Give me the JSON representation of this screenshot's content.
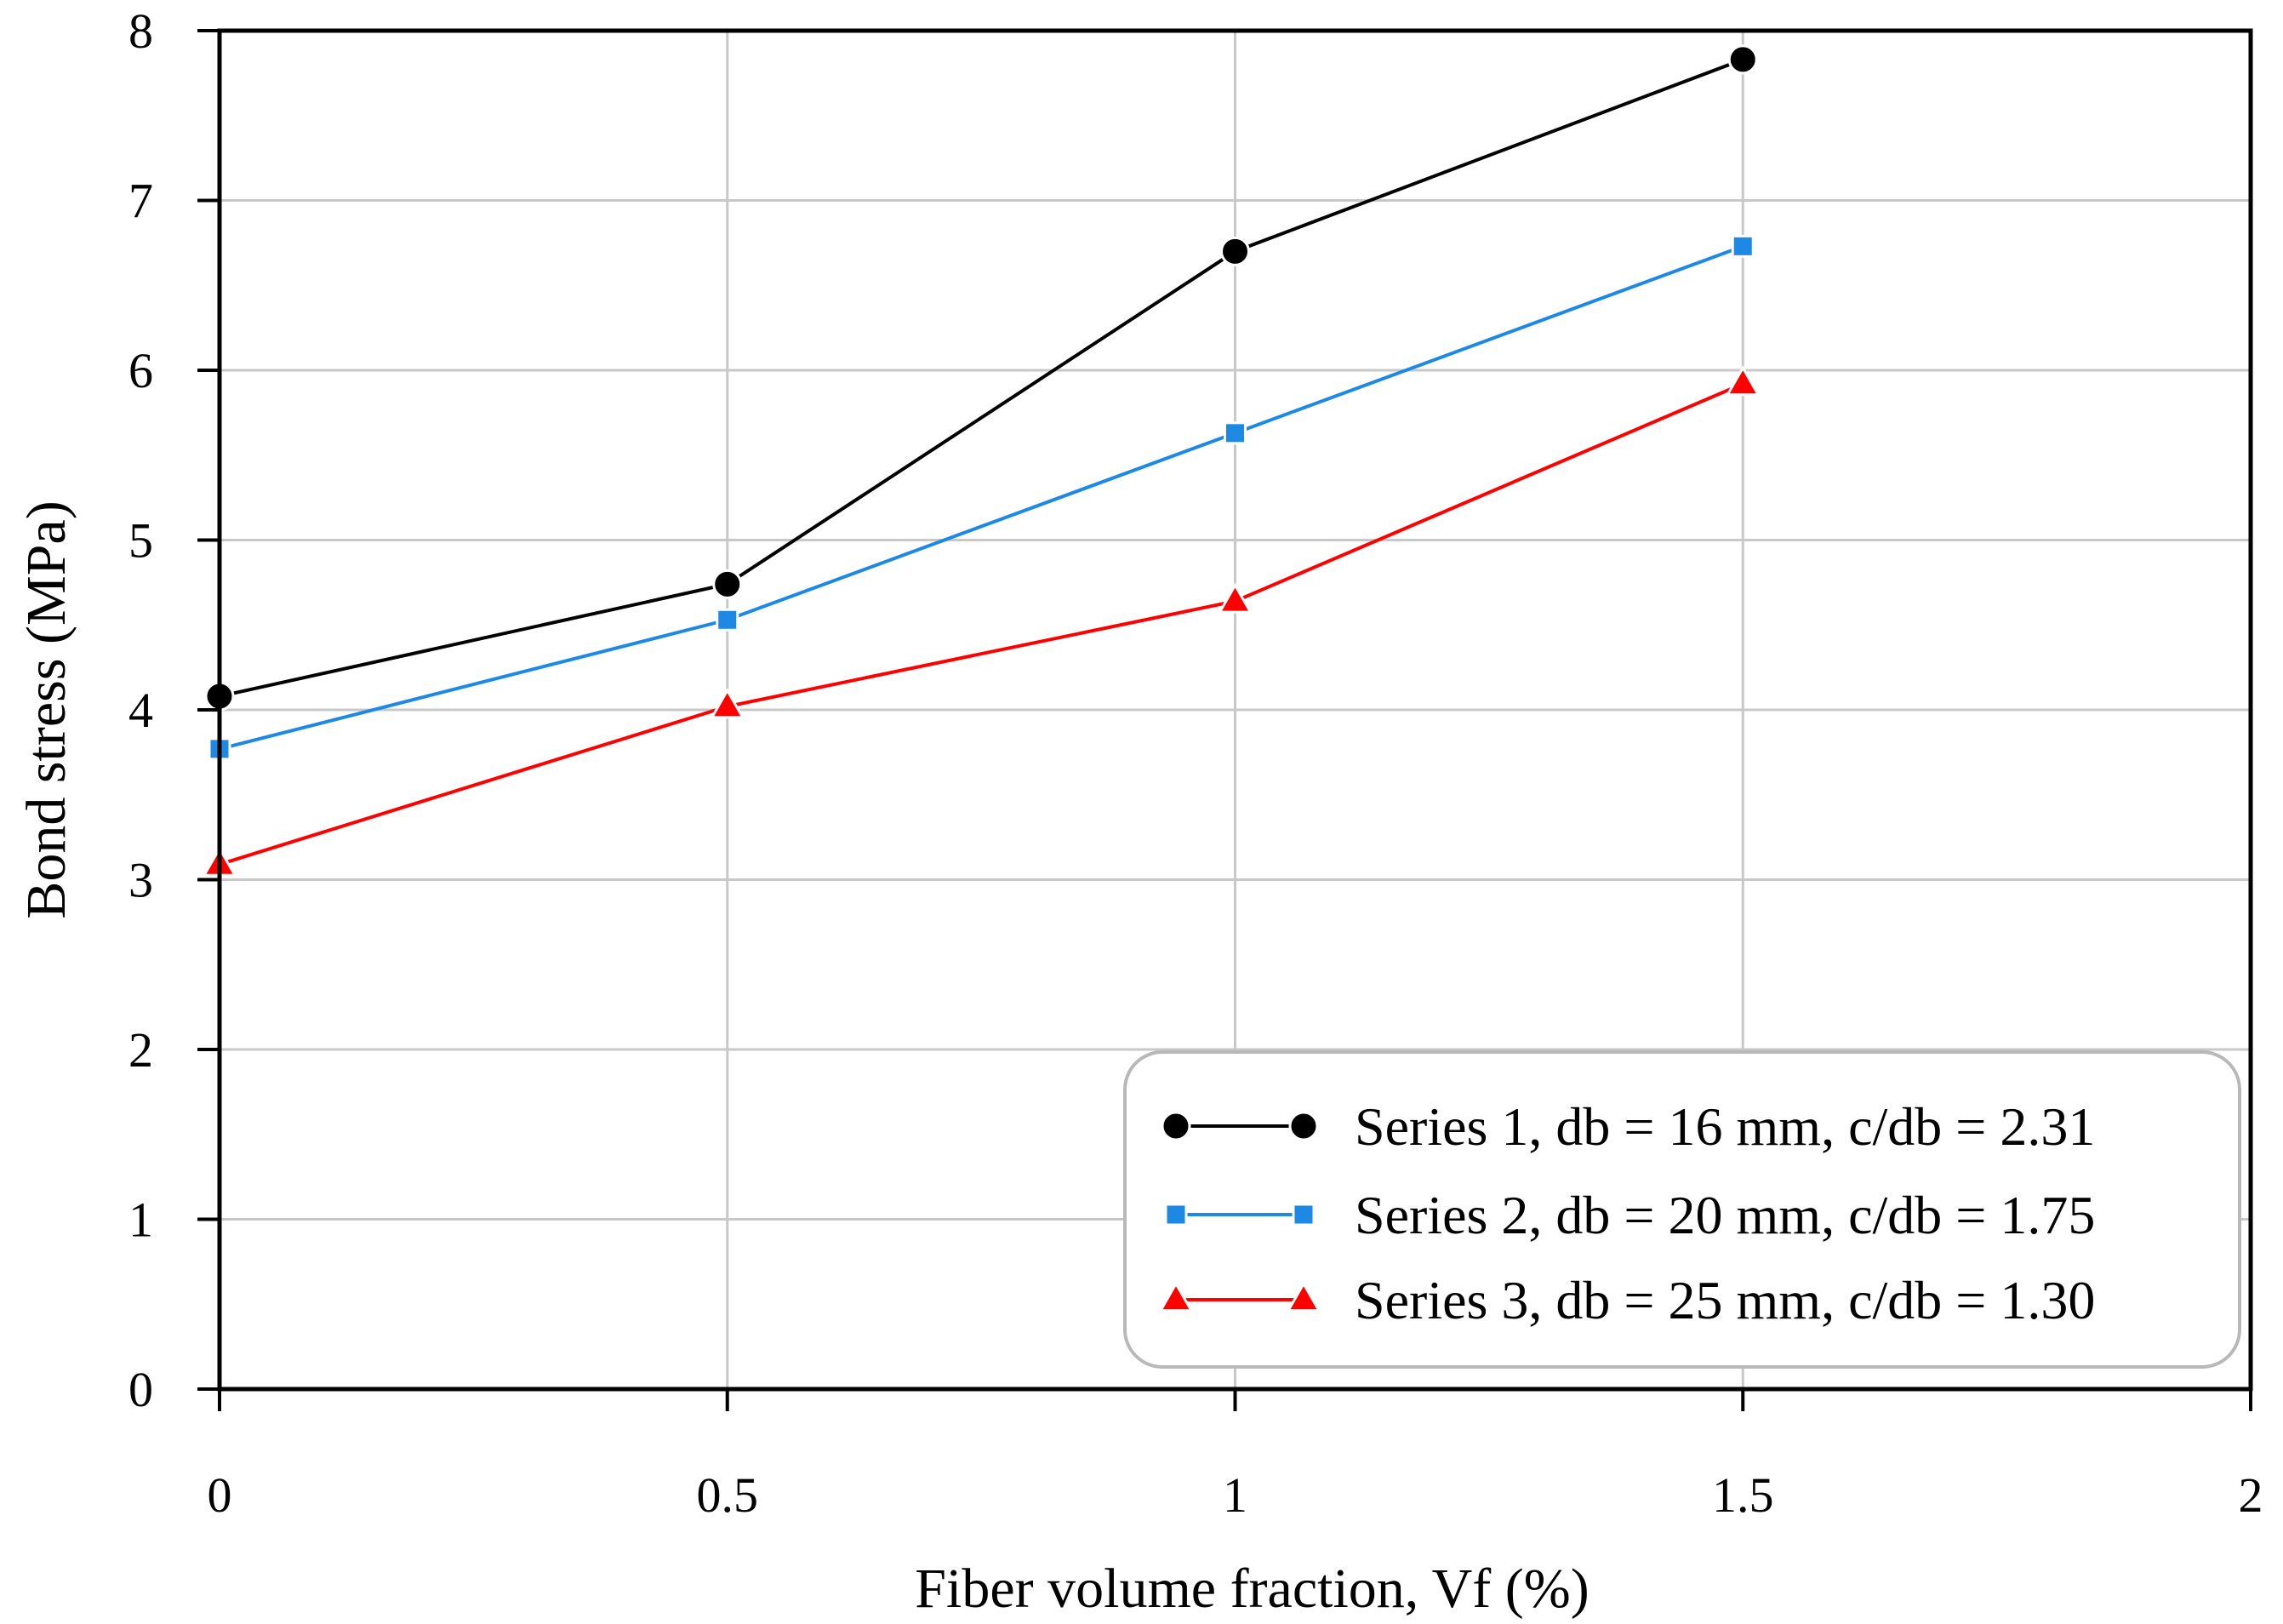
{
  "chart_data": {
    "type": "line",
    "title": "",
    "xlabel": "Fiber volume fraction, Vf (%)",
    "ylabel": "Bond stress (MPa)",
    "xlim": [
      0,
      2
    ],
    "ylim": [
      0,
      8
    ],
    "xticks": [
      "0",
      "0.5",
      "1",
      "1.5",
      "2"
    ],
    "xtick_values": [
      0,
      0.5,
      1,
      1.5,
      2
    ],
    "yticks": [
      "0",
      "1",
      "2",
      "3",
      "4",
      "5",
      "6",
      "7",
      "8"
    ],
    "ytick_values": [
      0,
      1,
      2,
      3,
      4,
      5,
      6,
      7,
      8
    ],
    "grid": true,
    "legend_position": "bottom-right",
    "x": [
      0,
      0.5,
      1,
      1.5
    ],
    "series": [
      {
        "name": "Series 1, db = 16 mm, c/db = 2.31",
        "values": [
          4.08,
          4.74,
          6.7,
          7.83
        ],
        "color": "#000000",
        "marker": "circle"
      },
      {
        "name": "Series 2, db = 20 mm, c/db = 1.75",
        "values": [
          3.77,
          4.53,
          5.63,
          6.73
        ],
        "color": "#1e88e5",
        "marker": "square"
      },
      {
        "name": "Series 3, db = 25 mm, c/db = 1.30",
        "values": [
          3.09,
          4.02,
          4.64,
          5.92
        ],
        "color": "#ff0000",
        "marker": "triangle"
      }
    ]
  }
}
